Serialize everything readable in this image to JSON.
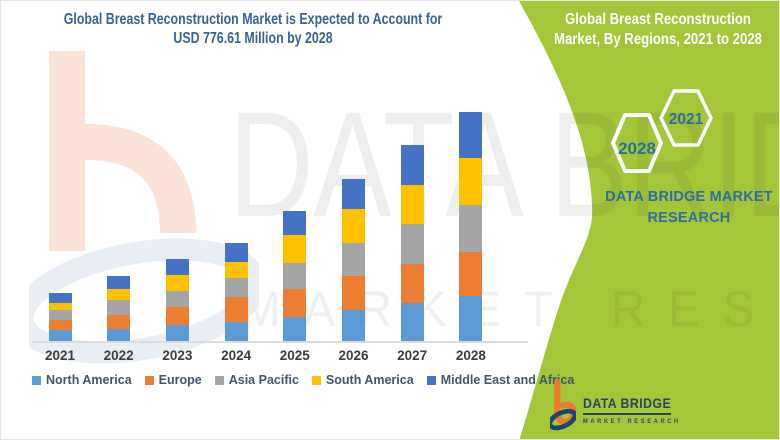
{
  "title": {
    "line1": "Global Breast Reconstruction Market is Expected to Account for",
    "line2": "USD 776.61 Million by 2028"
  },
  "side_panel": {
    "header_line1": "Global Breast Reconstruction",
    "header_line2": "Market, By Regions, 2021 to 2028",
    "hexagon_back_label": "2028",
    "hexagon_front_label": "2021",
    "brand_line1": "DATA BRIDGE MARKET",
    "brand_line2": "RESEARCH"
  },
  "watermark": {
    "line1": "DATA BRIDGE",
    "line2": "MARKET RESEARCH"
  },
  "logo": {
    "name": "DATA BRIDGE",
    "subtitle": "MARKET RESEARCH"
  },
  "colors": {
    "panel_green": "#a4c639",
    "title_blue": "#3a6295",
    "brand_blue": "#2b6f9e",
    "logo_navy": "#25455e",
    "logo_orange": "#e87a2e",
    "axis_line": "#dcdcdc",
    "year_label": "#3d3d3d",
    "legend_text": "#44546a"
  },
  "chart_data": {
    "type": "bar",
    "stacked": true,
    "title": "Global Breast Reconstruction Market, By Regions, 2021 to 2028",
    "unit": "USD Million",
    "categories": [
      "2021",
      "2022",
      "2023",
      "2024",
      "2025",
      "2026",
      "2027",
      "2028"
    ],
    "series": [
      {
        "name": "North America",
        "color": "#5B9BD5",
        "values": [
          40,
          44,
          57,
          68,
          84,
          107,
          133,
          155
        ]
      },
      {
        "name": "Europe",
        "color": "#ED7D31",
        "values": [
          36,
          46,
          61,
          84,
          96,
          115,
          132,
          149
        ]
      },
      {
        "name": "Asia Pacific",
        "color": "#A5A5A5",
        "values": [
          31,
          52,
          54,
          65,
          87,
          112,
          135,
          158
        ]
      },
      {
        "name": "South America",
        "color": "#FFC000",
        "values": [
          25,
          37,
          54,
          53,
          96,
          116,
          129,
          158
        ]
      },
      {
        "name": "Middle East and Africa",
        "color": "#4472C4",
        "values": [
          34,
          44,
          53,
          64,
          79,
          101,
          135,
          156.61
        ]
      }
    ],
    "totals": [
      166,
      223,
      279,
      334,
      442,
      551,
      664,
      776.61
    ],
    "ylim": [
      0,
      800
    ],
    "grid": false,
    "y_axis_visible": false,
    "legend_position": "bottom"
  }
}
